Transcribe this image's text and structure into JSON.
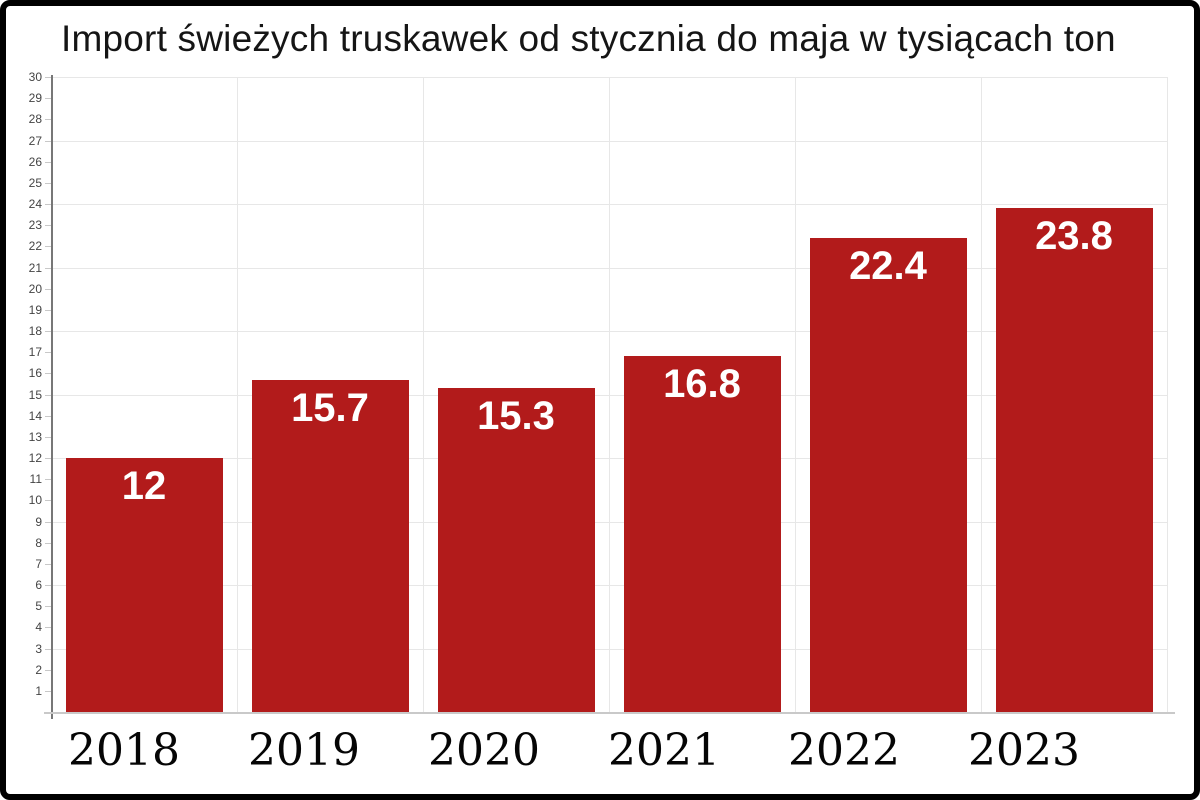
{
  "title": "Import świeżych truskawek od stycznia do maja w tysiącach ton",
  "chart_data": {
    "type": "bar",
    "title": "Import świeżych truskawek od stycznia do maja w tysiącach ton",
    "xlabel": "",
    "ylabel": "",
    "categories": [
      "2018",
      "2019",
      "2020",
      "2021",
      "2022",
      "2023"
    ],
    "values": [
      12,
      15.7,
      15.3,
      16.8,
      22.4,
      23.8
    ],
    "bar_labels": [
      "12",
      "15.7",
      "15.3",
      "16.8",
      "22.4",
      "23.8"
    ],
    "ylim": [
      0,
      30
    ],
    "y_ticks": [
      1,
      2,
      3,
      4,
      5,
      6,
      7,
      8,
      9,
      10,
      11,
      12,
      13,
      14,
      15,
      16,
      17,
      18,
      19,
      20,
      21,
      22,
      23,
      24,
      25,
      26,
      27,
      28,
      29,
      30
    ],
    "grid_step": 3,
    "grid": true,
    "legend": false,
    "value_labels_position": "inside-top",
    "colors": {
      "bar": "#b21b1b",
      "value_label": "#ffffff",
      "grid": "#e7e7e7",
      "axis": "#777777",
      "baseline": "#c9c9c9",
      "tick": "#c8c8c8",
      "tick_label": "#444444",
      "title": "#151515",
      "year_label": "#050505",
      "frame_border": "#000000",
      "background": "#ffffff"
    }
  }
}
